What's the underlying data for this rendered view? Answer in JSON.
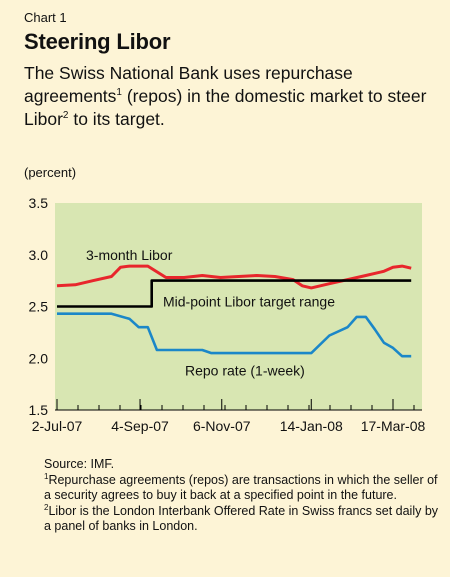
{
  "header": {
    "chart_label": "Chart 1",
    "title": "Steering Libor",
    "subtitle_part1": "The Swiss National Bank uses repurchase agreements",
    "subtitle_sup1": "1",
    "subtitle_part2": " (repos) in the domestic market to steer Libor",
    "subtitle_sup2": "2",
    "subtitle_part3": " to its target.",
    "unit": "(percent)"
  },
  "notes": {
    "source": "Source: IMF.",
    "fn1_mark": "1",
    "fn1_text": "Repurchase agreements (repos) are transactions in which the seller of a security agrees to buy it back at a specified point in the future.",
    "fn2_mark": "2",
    "fn2_text": "Libor is the London Interbank Offered Rate in Swiss francs set daily by a panel of banks in London."
  },
  "colors": {
    "plot_bg": "#d8e6b2",
    "libor": "#e8262c",
    "target": "#000000",
    "repo": "#1b87c8",
    "page_bg": "#fdf4d6"
  },
  "chart_data": {
    "type": "line",
    "x_tick_labels": [
      "2-Jul-07",
      "4-Sep-07",
      "6-Nov-07",
      "14-Jan-08",
      "17-Mar-08"
    ],
    "ylim": [
      1.5,
      3.5
    ],
    "y_ticks": [
      "1.5",
      "2.0",
      "2.5",
      "3.0",
      "3.5"
    ],
    "grid": false,
    "series": [
      {
        "name": "3-month Libor",
        "values": [
          [
            "2-Jul-07",
            2.7
          ],
          [
            "16-Jul-07",
            2.71
          ],
          [
            "30-Jul-07",
            2.75
          ],
          [
            "13-Aug-07",
            2.79
          ],
          [
            "20-Aug-07",
            2.88
          ],
          [
            "27-Aug-07",
            2.89
          ],
          [
            "10-Sep-07",
            2.89
          ],
          [
            "24-Sep-07",
            2.78
          ],
          [
            "8-Oct-07",
            2.78
          ],
          [
            "22-Oct-07",
            2.8
          ],
          [
            "5-Nov-07",
            2.78
          ],
          [
            "19-Nov-07",
            2.79
          ],
          [
            "3-Dec-07",
            2.8
          ],
          [
            "17-Dec-07",
            2.79
          ],
          [
            "31-Dec-07",
            2.76
          ],
          [
            "7-Jan-08",
            2.7
          ],
          [
            "14-Jan-08",
            2.68
          ],
          [
            "28-Jan-08",
            2.72
          ],
          [
            "11-Feb-08",
            2.76
          ],
          [
            "25-Feb-08",
            2.8
          ],
          [
            "10-Mar-08",
            2.84
          ],
          [
            "17-Mar-08",
            2.88
          ],
          [
            "24-Mar-08",
            2.89
          ],
          [
            "31-Mar-08",
            2.87
          ]
        ]
      },
      {
        "name": "Mid-point Libor target range",
        "values": [
          [
            "2-Jul-07",
            2.5
          ],
          [
            "13-Sep-07",
            2.5
          ],
          [
            "13-Sep-07",
            2.75
          ],
          [
            "31-Mar-08",
            2.75
          ]
        ]
      },
      {
        "name": "Repo rate (1-week)",
        "values": [
          [
            "2-Jul-07",
            2.43
          ],
          [
            "13-Aug-07",
            2.43
          ],
          [
            "27-Aug-07",
            2.38
          ],
          [
            "3-Sep-07",
            2.3
          ],
          [
            "10-Sep-07",
            2.3
          ],
          [
            "17-Sep-07",
            2.08
          ],
          [
            "22-Oct-07",
            2.08
          ],
          [
            "29-Oct-07",
            2.05
          ],
          [
            "7-Jan-08",
            2.05
          ],
          [
            "14-Jan-08",
            2.05
          ],
          [
            "28-Jan-08",
            2.22
          ],
          [
            "11-Feb-08",
            2.3
          ],
          [
            "18-Feb-08",
            2.4
          ],
          [
            "25-Feb-08",
            2.4
          ],
          [
            "3-Mar-08",
            2.28
          ],
          [
            "10-Mar-08",
            2.15
          ],
          [
            "17-Mar-08",
            2.1
          ],
          [
            "24-Mar-08",
            2.02
          ],
          [
            "31-Mar-08",
            2.02
          ]
        ]
      }
    ],
    "annotations": [
      "3-month Libor",
      "Mid-point Libor target range",
      "Repo rate (1-week)"
    ]
  }
}
